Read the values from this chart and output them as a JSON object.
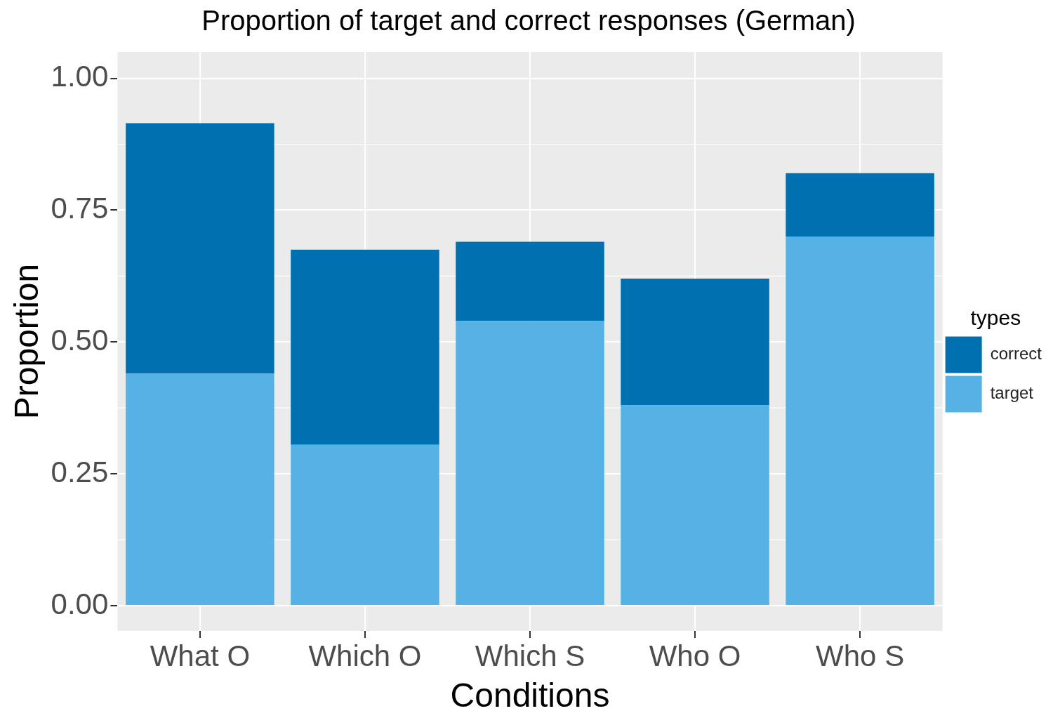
{
  "chart_data": {
    "type": "bar",
    "title": "Proportion of target and correct responses (German)",
    "xlabel": "Conditions",
    "ylabel": "Proportion",
    "legend_title": "types",
    "categories": [
      "What O",
      "Which O",
      "Which S",
      "Who O",
      "Who S"
    ],
    "series": [
      {
        "name": "target",
        "color": "#56b1e5",
        "values": [
          0.44,
          0.305,
          0.54,
          0.38,
          0.7
        ]
      },
      {
        "name": "correct",
        "color": "#0070b0",
        "values": [
          0.475,
          0.37,
          0.15,
          0.24,
          0.12
        ]
      }
    ],
    "stacked": true,
    "ylim": [
      -0.048,
      1.05
    ],
    "yticks": [
      {
        "value": 0,
        "label": "0.00"
      },
      {
        "value": 0.25,
        "label": "0.25"
      },
      {
        "value": 0.5,
        "label": "0.50"
      },
      {
        "value": 0.75,
        "label": "0.75"
      },
      {
        "value": 1,
        "label": "1.00"
      }
    ],
    "grid": true,
    "legend": "right"
  }
}
